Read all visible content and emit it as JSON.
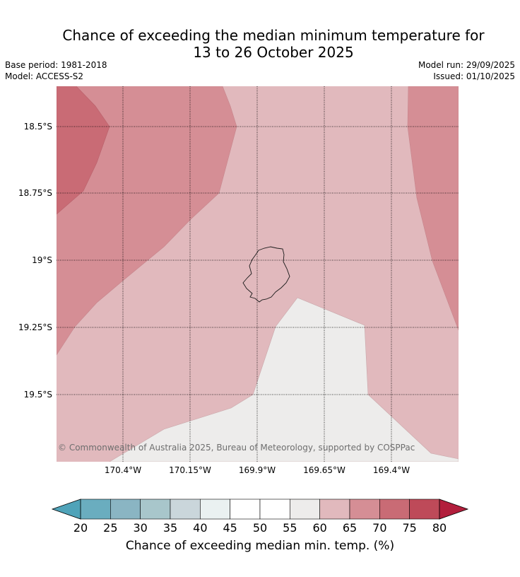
{
  "title": {
    "line1": "Chance of exceeding the median minimum temperature for",
    "line2": "13 to 26 October 2025"
  },
  "meta": {
    "base_period": "Base period: 1981-2018",
    "model": "Model: ACCESS-S2",
    "model_run": "Model run: 29/09/2025",
    "issued": "Issued: 01/10/2025"
  },
  "map": {
    "lat_labels": [
      "18.5°S",
      "18.75°S",
      "19°S",
      "19.25°S",
      "19.5°S"
    ],
    "lon_labels": [
      "170.4°W",
      "170.15°W",
      "169.9°W",
      "169.65°W",
      "169.4°W"
    ],
    "copyright": "© Commonwealth of Australia 2025, Bureau of Meteorology, supported by COSPPac",
    "colors": {
      "c50_55": "#edeceb",
      "c60_65": "#e1b9bd",
      "c65_70": "#d58e95",
      "c70_75": "#c96b75"
    }
  },
  "colorbar": {
    "ticks": [
      "20",
      "25",
      "30",
      "35",
      "40",
      "45",
      "50",
      "55",
      "60",
      "65",
      "70",
      "75",
      "80"
    ],
    "colors": [
      "#6aadbf",
      "#8ab5c3",
      "#a8c6cb",
      "#cad6db",
      "#eaf1f1",
      "#ffffff",
      "#ffffff",
      "#edeceb",
      "#e1b9bd",
      "#d58e95",
      "#c96b75",
      "#be4a59"
    ],
    "under_color": "#4fa3b9",
    "over_color": "#b21e3c",
    "label": "Chance of exceeding median min. temp. (%)"
  }
}
